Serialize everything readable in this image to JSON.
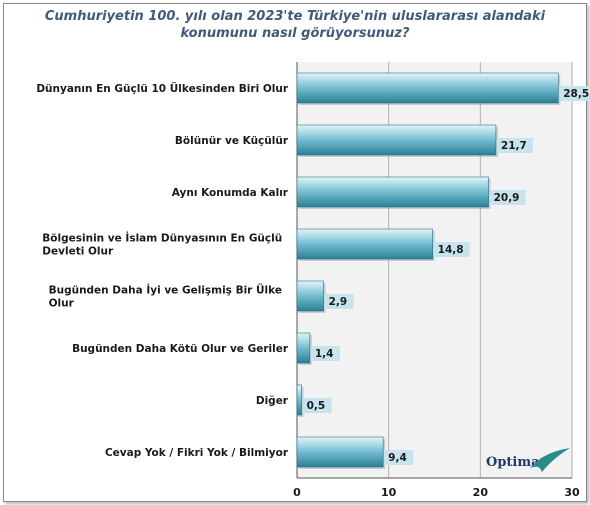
{
  "chart_data": {
    "type": "bar",
    "orientation": "horizontal",
    "title": "Cumhuriyetin 100. yılı olan 2023'te Türkiye'nin uluslararası alandaki konumunu nasıl görüyorsunuz?",
    "title_lines": [
      "Cumhuriyetin 100. yılı olan 2023'te Türkiye'nin uluslararası alandaki",
      "konumunu nasıl görüyorsunuz?"
    ],
    "categories": [
      [
        "Dünyanın En Güçlü 10 Ülkesinden Biri Olur"
      ],
      [
        "Bölünür ve Küçülür"
      ],
      [
        "Aynı Konumda Kalır"
      ],
      [
        "Bölgesinin ve İslam Dünyasının En Güçlü",
        "Devleti Olur"
      ],
      [
        "Bugünden Daha İyi ve Gelişmiş Bir Ülke",
        "Olur"
      ],
      [
        "Bugünden Daha Kötü Olur ve Geriler"
      ],
      [
        "Diğer"
      ],
      [
        "Cevap Yok / Fikri Yok / Bilmiyor"
      ]
    ],
    "values": [
      28.5,
      21.7,
      20.9,
      14.8,
      2.9,
      1.4,
      0.5,
      9.4
    ],
    "value_labels": [
      "28,5",
      "21,7",
      "20,9",
      "14,8",
      "2,9",
      "1,4",
      "0,5",
      "9,4"
    ],
    "xlim": [
      0,
      30
    ],
    "xticks": [
      0,
      10,
      20,
      30
    ],
    "grid": true,
    "legend": "none",
    "colors": {
      "bar_dark": "#2e8aa0",
      "bar_light": "#d6f0f6",
      "label_box": "#c9e3ee",
      "grid": "#b0b0b0",
      "plot_bg": "#f2f2f2",
      "title": "#3f5a7a"
    }
  },
  "logo": {
    "text": "Optimar"
  }
}
